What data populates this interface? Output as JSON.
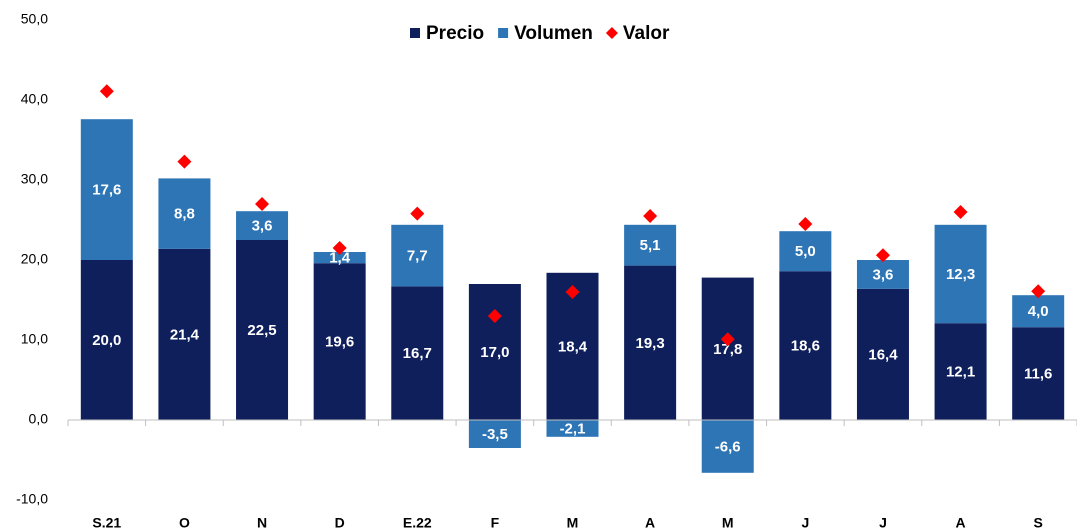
{
  "chart_data": {
    "type": "bar",
    "stacked": true,
    "categories": [
      "S.21",
      "O",
      "N",
      "D",
      "E.22",
      "F",
      "M",
      "A",
      "M",
      "J",
      "J",
      "A",
      "S"
    ],
    "series": [
      {
        "name": "Precio",
        "type": "bar",
        "color": "#0f1f5c",
        "values": [
          20.0,
          21.4,
          22.5,
          19.6,
          16.7,
          17.0,
          18.4,
          19.3,
          17.8,
          18.6,
          16.4,
          12.1,
          11.6
        ],
        "value_labels": [
          "20,0",
          "21,4",
          "22,5",
          "19,6",
          "16,7",
          "17,0",
          "18,4",
          "19,3",
          "17,8",
          "18,6",
          "16,4",
          "12,1",
          "11,6"
        ]
      },
      {
        "name": "Volumen",
        "type": "bar",
        "color": "#2e75b6",
        "values": [
          17.6,
          8.8,
          3.6,
          1.4,
          7.7,
          -3.5,
          -2.1,
          5.1,
          -6.6,
          5.0,
          3.6,
          12.3,
          4.0
        ],
        "value_labels": [
          "17,6",
          "8,8",
          "3,6",
          "1,4",
          "7,7",
          "-3,5",
          "-2,1",
          "5,1",
          "-6,6",
          "5,0",
          "3,6",
          "12,3",
          "4,0"
        ]
      },
      {
        "name": "Valor",
        "type": "marker",
        "color": "#ff0000",
        "values": [
          41.1,
          32.3,
          27.0,
          21.5,
          25.8,
          13.0,
          16.0,
          25.5,
          10.1,
          24.5,
          20.6,
          26.0,
          16.1
        ]
      }
    ],
    "ylim": [
      -10,
      50
    ],
    "yticks": [
      {
        "value": -10,
        "label": "-10,0"
      },
      {
        "value": 0,
        "label": "0,0"
      },
      {
        "value": 10,
        "label": "10,0"
      },
      {
        "value": 20,
        "label": "20,0"
      },
      {
        "value": 30,
        "label": "30,0"
      },
      {
        "value": 40,
        "label": "40,0"
      },
      {
        "value": 50,
        "label": "50,0"
      }
    ],
    "grid": false,
    "legend": "top"
  }
}
